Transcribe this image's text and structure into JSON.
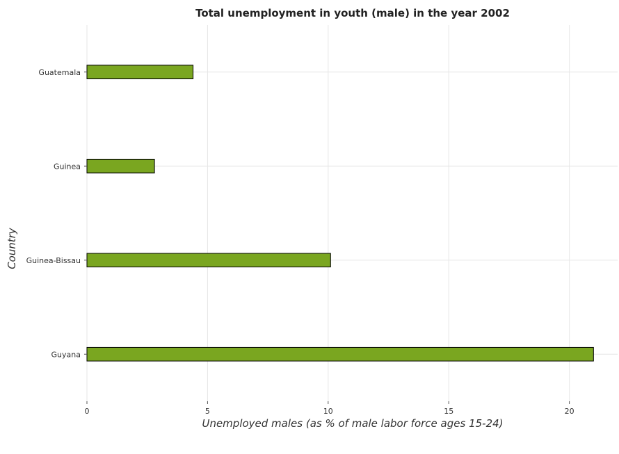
{
  "chart_data": {
    "type": "bar",
    "orientation": "horizontal",
    "title": "Total unemployment in youth (male) in the year 2002",
    "xlabel": "Unemployed males (as % of male labor force ages 15-24)",
    "ylabel": "Country",
    "categories": [
      "Guatemala",
      "Guinea",
      "Guinea-Bissau",
      "Guyana"
    ],
    "series": [
      {
        "values": [
          4.4,
          2.8,
          10.1,
          21.0
        ]
      }
    ],
    "xlim": [
      0,
      22
    ],
    "xticks": [
      0,
      5,
      10,
      15,
      20
    ],
    "xtick_labels": [
      "0",
      "5",
      "10",
      "15",
      "20"
    ],
    "grid": true,
    "bar_color": "#7aa620",
    "bar_edge_color": "#000000"
  }
}
